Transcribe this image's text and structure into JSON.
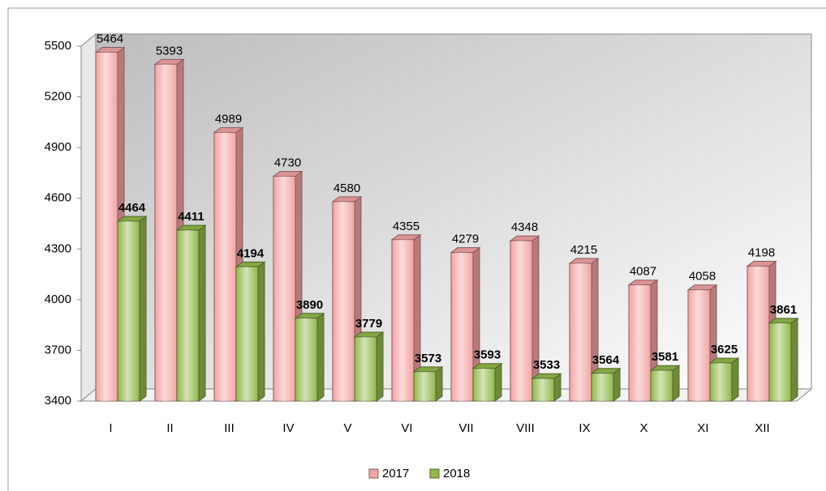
{
  "chart_data": {
    "type": "bar3d",
    "categories": [
      "I",
      "II",
      "III",
      "IV",
      "V",
      "VI",
      "VII",
      "VIII",
      "IX",
      "X",
      "XI",
      "XII"
    ],
    "series": [
      {
        "name": "2017",
        "color": "#f4a3a3",
        "values": [
          5464,
          5393,
          4989,
          4730,
          4580,
          4355,
          4279,
          4348,
          4215,
          4087,
          4058,
          4198
        ]
      },
      {
        "name": "2018",
        "color": "#92b84a",
        "values": [
          4464,
          4411,
          4194,
          3890,
          3779,
          3573,
          3593,
          3533,
          3564,
          3581,
          3625,
          3861
        ]
      }
    ],
    "ylim": [
      3400,
      5500
    ],
    "yticks": [
      3400,
      3700,
      4000,
      4300,
      4600,
      4900,
      5200,
      5500
    ],
    "grid": false,
    "legend": "bottom"
  }
}
